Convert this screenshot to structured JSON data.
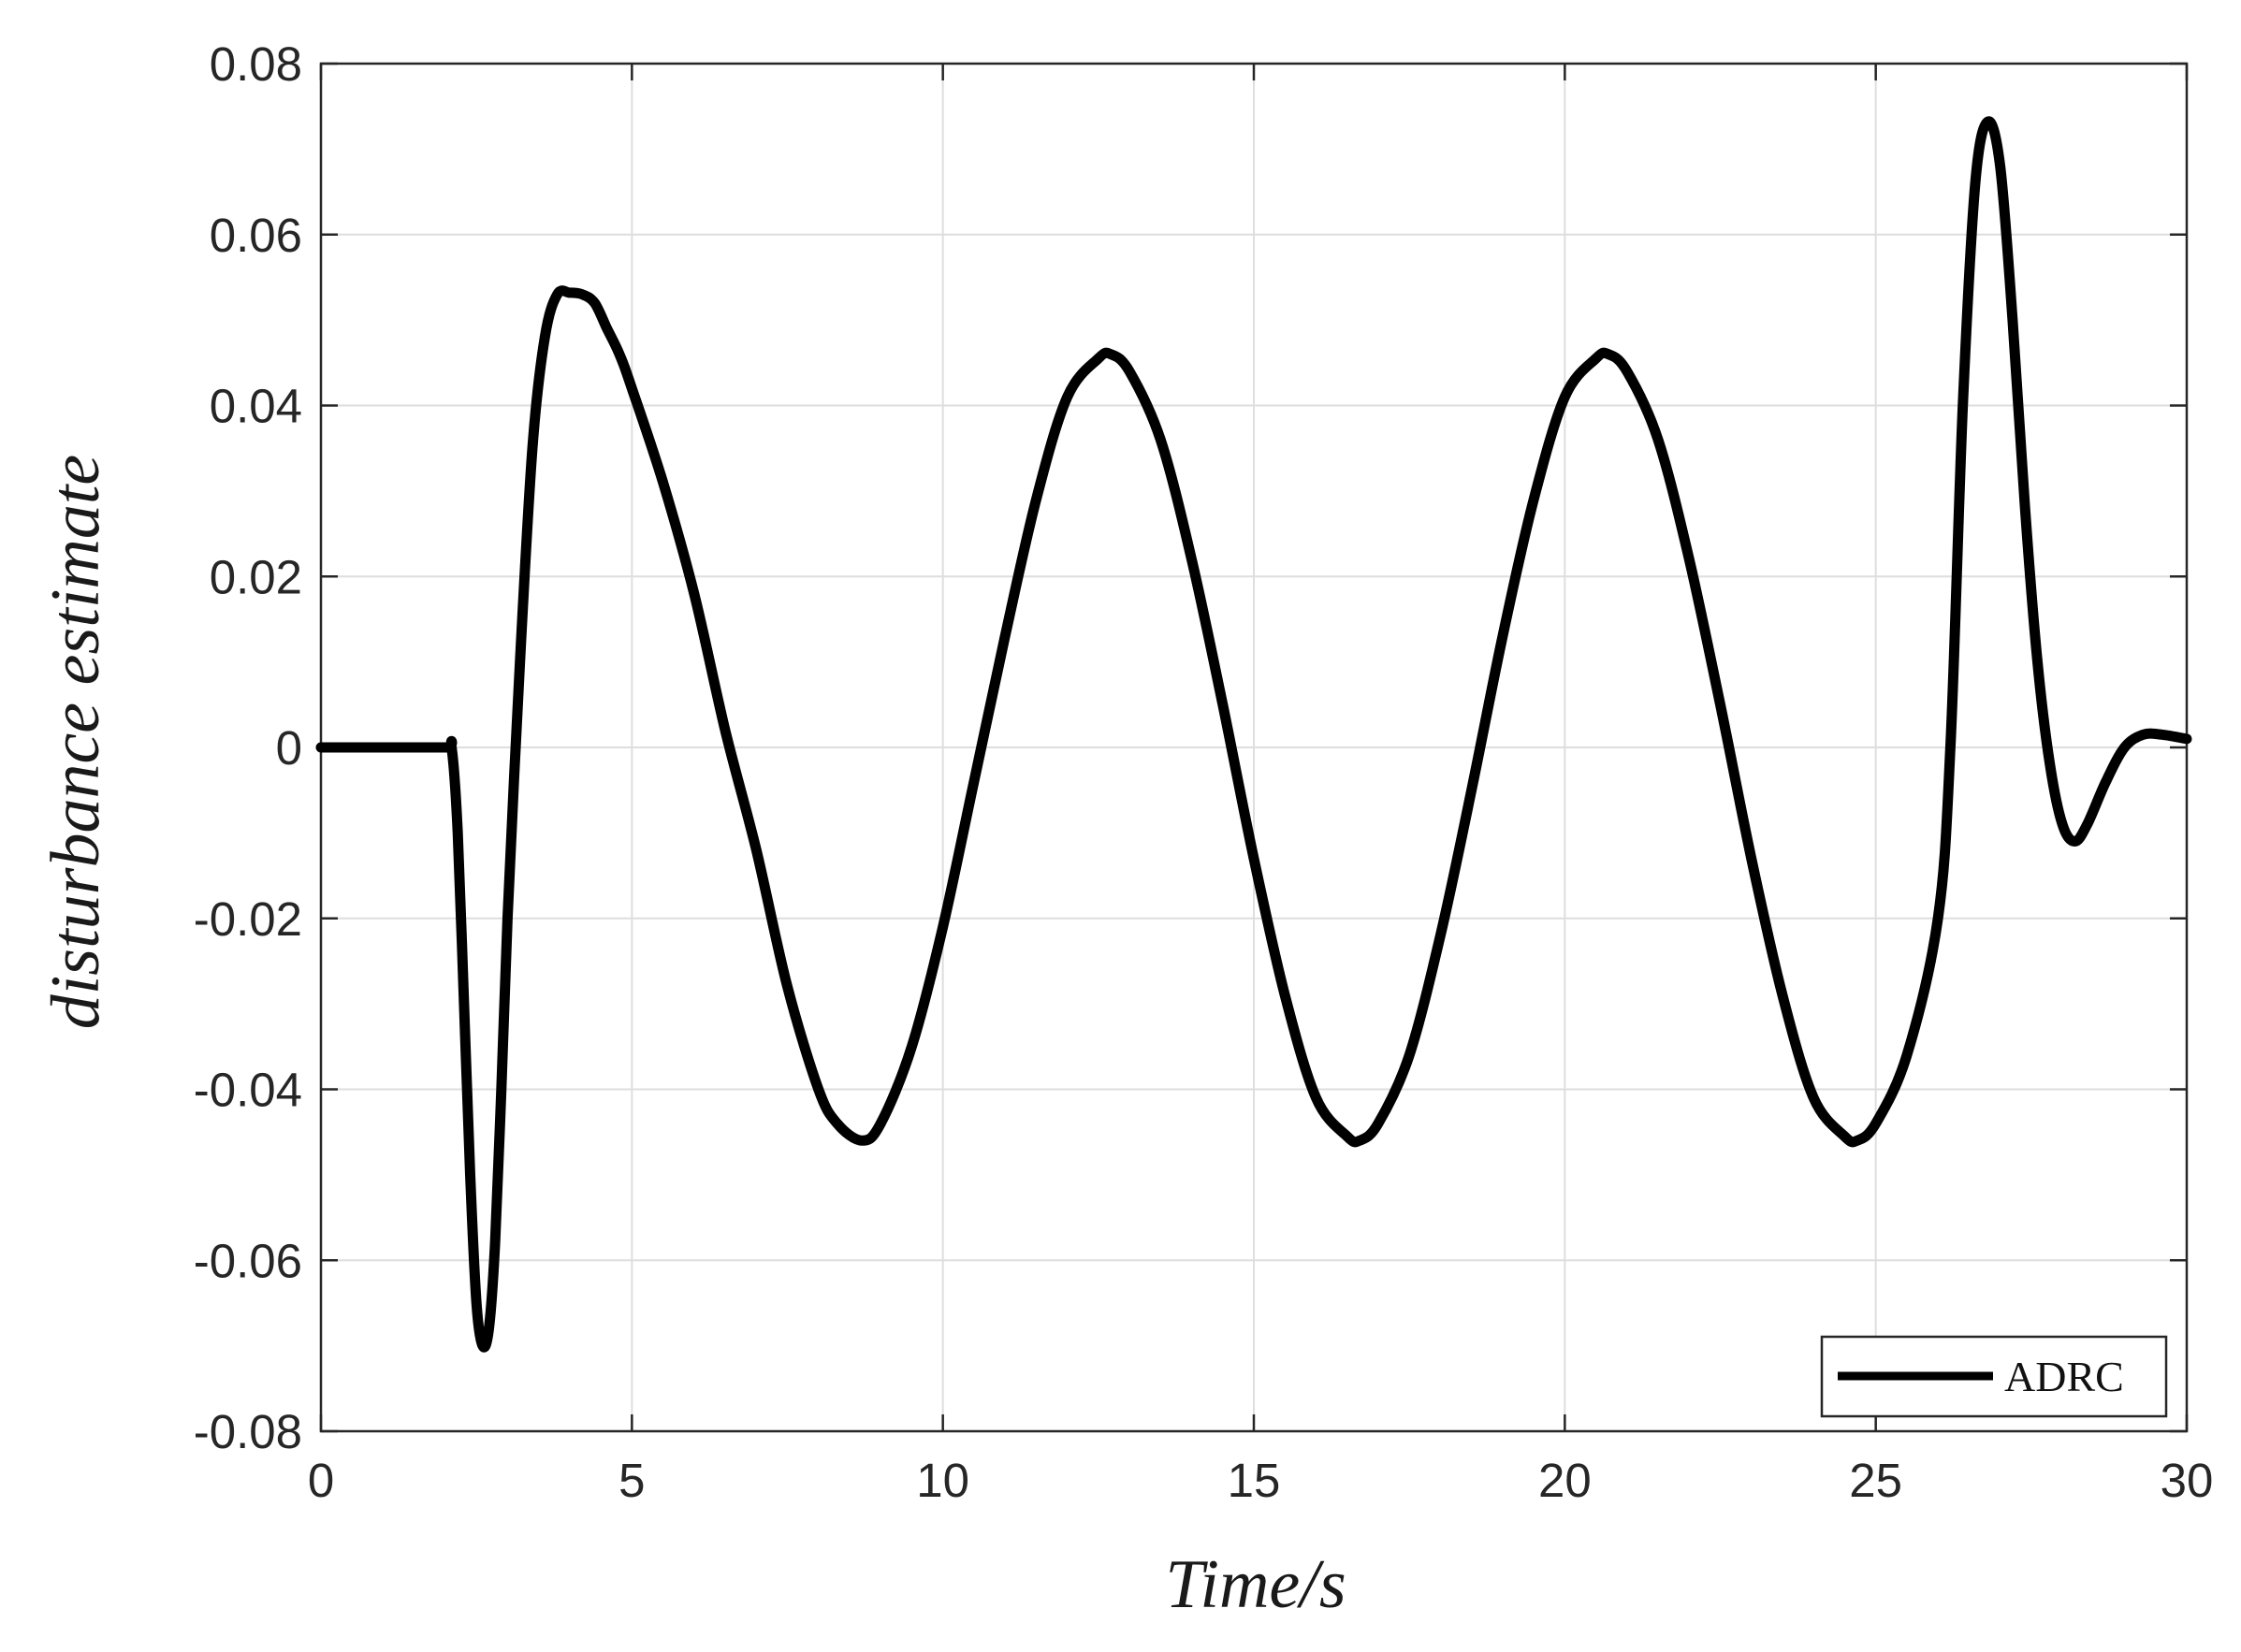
{
  "chart_data": {
    "type": "line",
    "title": "",
    "xlabel": "Time/s",
    "ylabel": "disturbance estimate",
    "xlim": [
      0,
      30
    ],
    "ylim": [
      -0.08,
      0.08
    ],
    "xticks": [
      0,
      5,
      10,
      15,
      20,
      25,
      30
    ],
    "xtick_labels": [
      "0",
      "5",
      "10",
      "15",
      "20",
      "25",
      "30"
    ],
    "yticks": [
      0.08,
      0.06,
      0.04,
      0.02,
      0,
      -0.02,
      -0.04,
      -0.06,
      -0.08
    ],
    "ytick_labels": [
      "0.08",
      "0.06",
      "0.04",
      "0.02",
      "0",
      "-0.02",
      "-0.04",
      "-0.06",
      "-0.08"
    ],
    "grid": true,
    "legend_position": "bottom-right",
    "series": [
      {
        "name": "ADRC",
        "color": "#000000",
        "x": [
          0,
          1.0,
          2.0,
          2.1,
          2.2,
          2.3,
          2.4,
          2.5,
          2.6,
          2.7,
          2.8,
          2.9,
          3.0,
          3.2,
          3.4,
          3.6,
          3.8,
          4.0,
          4.2,
          4.4,
          4.6,
          4.8,
          5.0,
          5.5,
          6.0,
          6.5,
          7.0,
          7.5,
          8.0,
          8.3,
          8.7,
          9.0,
          9.5,
          10.0,
          10.5,
          11.0,
          11.5,
          12.0,
          12.5,
          12.7,
          13.0,
          13.5,
          14.0,
          14.5,
          15.0,
          15.5,
          16.0,
          16.5,
          16.7,
          17.0,
          17.5,
          18.0,
          18.5,
          19.0,
          19.5,
          20.0,
          20.5,
          20.7,
          21.0,
          21.5,
          22.0,
          22.5,
          23.0,
          23.5,
          24.0,
          24.5,
          24.7,
          25.0,
          25.5,
          26.0,
          26.2,
          26.4,
          26.6,
          26.8,
          27.0,
          27.2,
          27.4,
          27.6,
          27.8,
          28.0,
          28.2,
          28.4,
          28.7,
          29.0,
          29.3,
          29.6,
          30.0
        ],
        "y": [
          0,
          0,
          0,
          0.0,
          -0.01,
          -0.03,
          -0.05,
          -0.065,
          -0.07,
          -0.068,
          -0.058,
          -0.04,
          -0.02,
          0.01,
          0.035,
          0.048,
          0.053,
          0.0532,
          0.053,
          0.052,
          0.049,
          0.046,
          0.042,
          0.031,
          0.018,
          0.002,
          -0.012,
          -0.028,
          -0.04,
          -0.044,
          -0.046,
          -0.044,
          -0.035,
          -0.021,
          -0.004,
          0.013,
          0.029,
          0.041,
          0.0455,
          0.046,
          0.044,
          0.036,
          0.022,
          0.005,
          -0.013,
          -0.029,
          -0.041,
          -0.0455,
          -0.046,
          -0.044,
          -0.036,
          -0.022,
          -0.005,
          0.013,
          0.029,
          0.041,
          0.0455,
          0.046,
          0.044,
          0.036,
          0.022,
          0.005,
          -0.013,
          -0.029,
          -0.041,
          -0.0455,
          -0.046,
          -0.044,
          -0.036,
          -0.02,
          0.0,
          0.04,
          0.066,
          0.0732,
          0.068,
          0.05,
          0.028,
          0.01,
          -0.002,
          -0.009,
          -0.011,
          -0.009,
          -0.004,
          0.0,
          0.0015,
          0.0015,
          0.001
        ]
      }
    ]
  }
}
